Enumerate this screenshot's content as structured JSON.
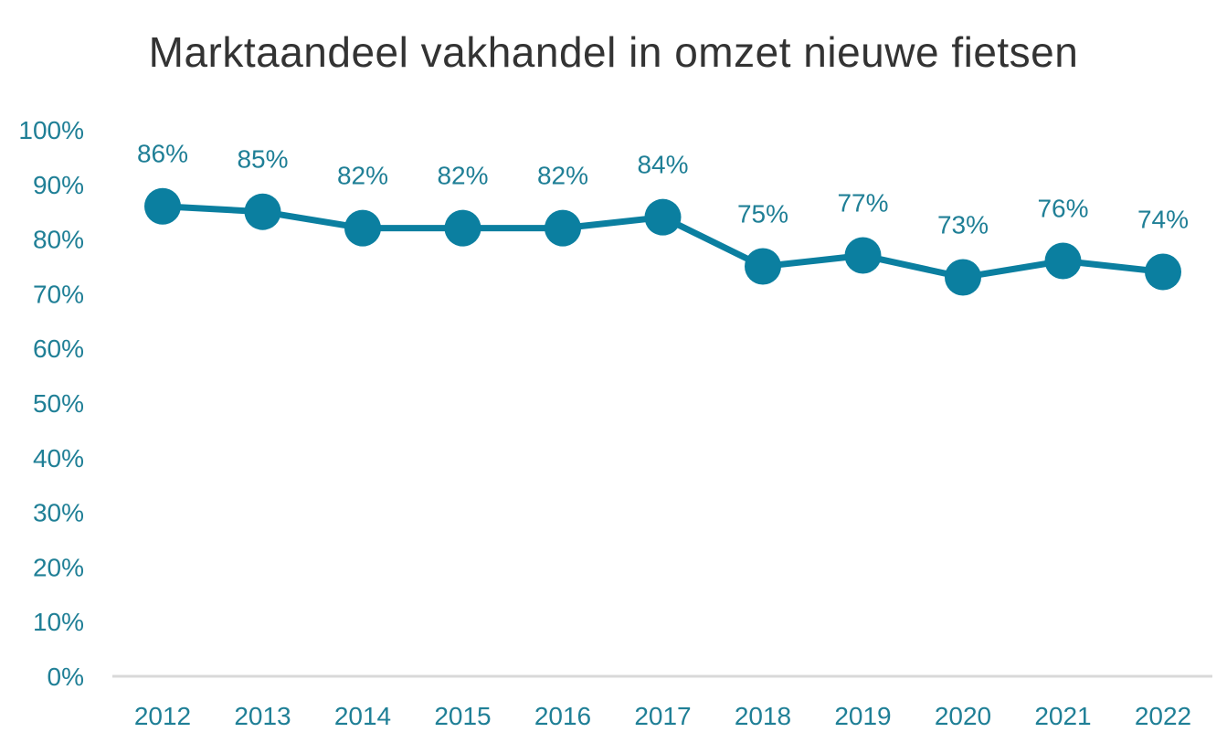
{
  "chart_data": {
    "type": "line",
    "title": "Marktaandeel vakhandel in omzet nieuwe fietsen",
    "xlabel": "",
    "ylabel": "",
    "categories": [
      "2012",
      "2013",
      "2014",
      "2015",
      "2016",
      "2017",
      "2018",
      "2019",
      "2020",
      "2021",
      "2022"
    ],
    "series": [
      {
        "values": [
          0.86,
          0.85,
          0.82,
          0.82,
          0.82,
          0.84,
          0.75,
          0.77,
          0.73,
          0.76,
          0.74
        ],
        "labels": [
          "86%",
          "85%",
          "82%",
          "82%",
          "82%",
          "84%",
          "75%",
          "77%",
          "73%",
          "76%",
          "74%"
        ]
      }
    ],
    "ylim": [
      0,
      1
    ],
    "yticks": [
      "0%",
      "10%",
      "20%",
      "30%",
      "40%",
      "50%",
      "60%",
      "70%",
      "80%",
      "90%",
      "100%"
    ],
    "grid": false,
    "legend": "none",
    "colors": {
      "series": "#0b7fa0",
      "axis_text": "#1f7f96",
      "title": "#333333",
      "baseline": "#d9d9d9"
    }
  }
}
